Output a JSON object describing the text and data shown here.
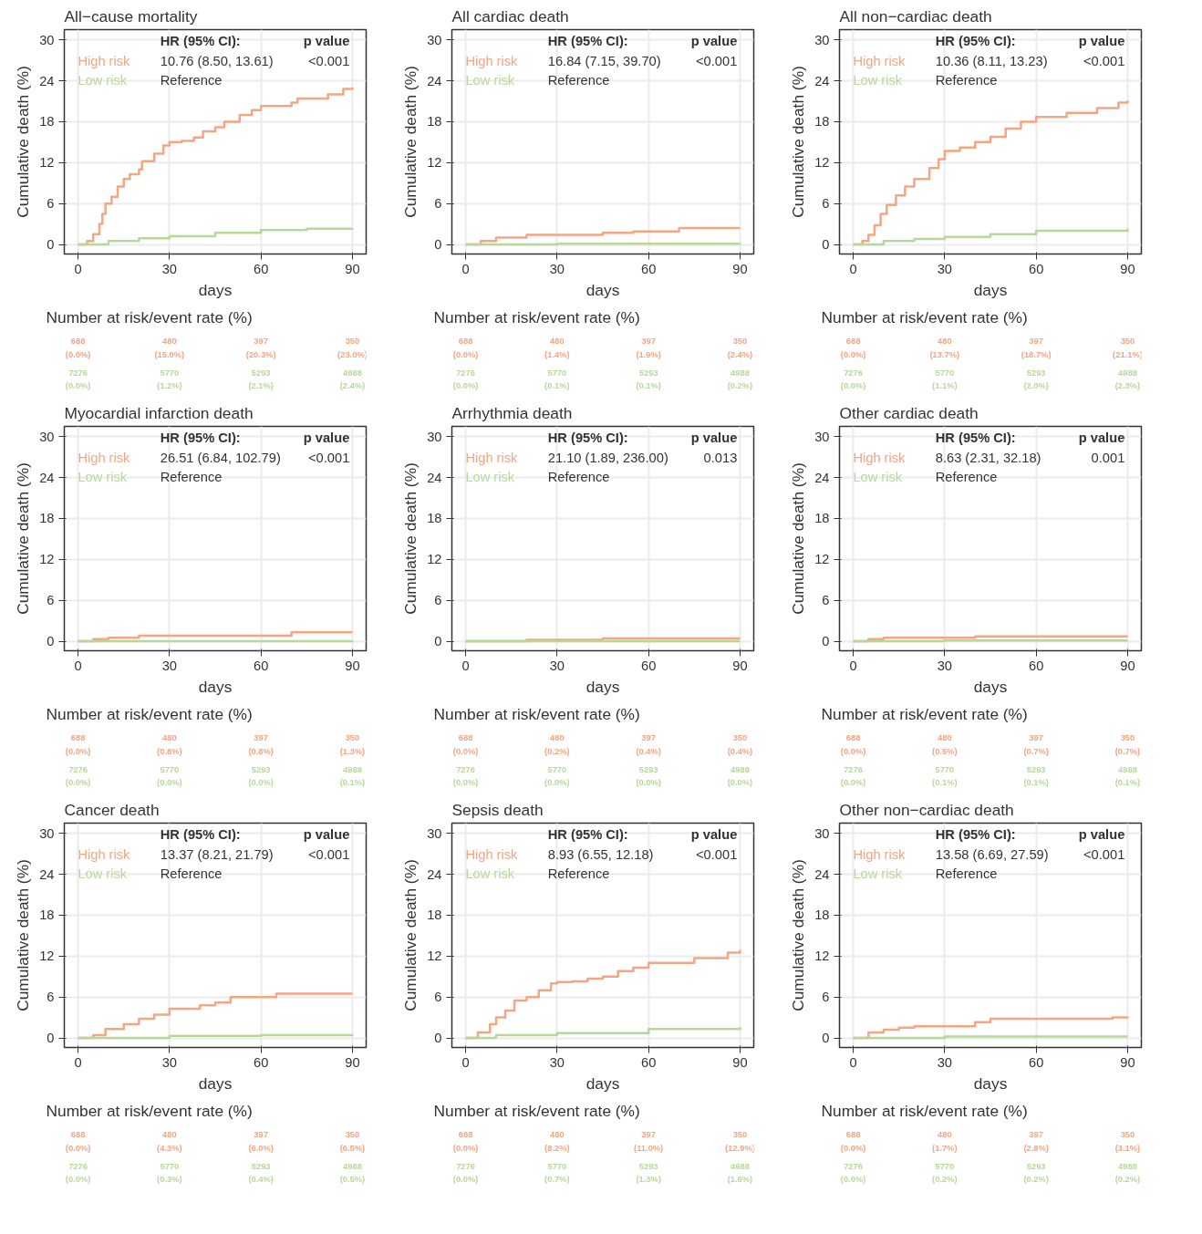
{
  "chart_data": [
    {
      "type": "step",
      "title": "All−cause mortality",
      "xlabel": "days",
      "ylabel": "Cumulative death (%)",
      "xlim": [
        -4.5,
        94.5
      ],
      "ylim": [
        -1.4,
        31.5
      ],
      "xticks": [
        0,
        30,
        60,
        90
      ],
      "yticks": [
        0,
        6,
        12,
        18,
        24,
        30
      ],
      "grid": true,
      "legend": "top left",
      "series": [
        {
          "name": "High risk",
          "color": "#f4a582",
          "x": [
            0,
            3,
            5,
            7,
            8,
            9,
            11,
            13,
            15,
            17,
            20,
            21,
            25,
            28,
            30,
            34,
            38,
            41,
            45,
            48,
            53,
            57,
            60,
            66,
            70,
            72,
            80,
            82,
            87,
            90
          ],
          "values": [
            0,
            0.5,
            1.5,
            3,
            4.5,
            6,
            7,
            8.5,
            9.6,
            10.3,
            11,
            12.2,
            13.3,
            14.5,
            15,
            15.2,
            15.7,
            16.6,
            17.2,
            18,
            19,
            19.7,
            20.3,
            20.3,
            20.8,
            21.4,
            21.4,
            22,
            22.8,
            23
          ]
        },
        {
          "name": "Low risk",
          "color": "#b8d89a",
          "x": [
            0,
            10,
            20,
            30,
            45,
            60,
            75,
            90
          ],
          "values": [
            0,
            0.5,
            0.9,
            1.2,
            1.7,
            2.1,
            2.3,
            2.4
          ]
        }
      ],
      "annotations": [
        "HR (95% CI):",
        "p value",
        "10.76 (8.50, 13.61)",
        "<0.001",
        "Reference",
        "Number at risk/event rate (%)",
        "688",
        "480",
        "397",
        "350",
        "(0.0%)",
        "(15.0%)",
        "(20.3%)",
        "(23.0%)",
        "7276",
        "5770",
        "5293",
        "4988",
        "(0.0%)",
        "(1.2%)",
        "(2.1%)",
        "(2.4%)"
      ]
    },
    {
      "type": "step",
      "title": "All cardiac death",
      "xlabel": "days",
      "ylabel": "Cumulative death (%)",
      "xlim": [
        -4.5,
        94.5
      ],
      "ylim": [
        -1.4,
        31.5
      ],
      "xticks": [
        0,
        30,
        60,
        90
      ],
      "yticks": [
        0,
        6,
        12,
        18,
        24,
        30
      ],
      "grid": true,
      "legend": "top left",
      "series": [
        {
          "name": "High risk",
          "color": "#f4a582",
          "x": [
            0,
            5,
            10,
            20,
            30,
            45,
            55,
            60,
            70,
            90
          ],
          "values": [
            0,
            0.5,
            1.0,
            1.4,
            1.4,
            1.7,
            1.9,
            1.9,
            2.4,
            2.4
          ]
        },
        {
          "name": "Low risk",
          "color": "#b8d89a",
          "x": [
            0,
            30,
            60,
            90
          ],
          "values": [
            0,
            0.1,
            0.1,
            0.2
          ]
        }
      ],
      "annotations": [
        "HR (95% CI):",
        "p value",
        "16.84 (7.15, 39.70)",
        "<0.001",
        "Reference",
        "Number at risk/event rate (%)",
        "688",
        "480",
        "397",
        "350",
        "(0.0%)",
        "(1.4%)",
        "(1.9%)",
        "(2.4%)",
        "7276",
        "5770",
        "5293",
        "4988",
        "(0.0%)",
        "(0.1%)",
        "(0.1%)",
        "(0.2%)"
      ]
    },
    {
      "type": "step",
      "title": "All non−cardiac death",
      "xlabel": "days",
      "ylabel": "Cumulative death (%)",
      "xlim": [
        -4.5,
        94.5
      ],
      "ylim": [
        -1.4,
        31.5
      ],
      "xticks": [
        0,
        30,
        60,
        90
      ],
      "yticks": [
        0,
        6,
        12,
        18,
        24,
        30
      ],
      "grid": true,
      "legend": "top left",
      "series": [
        {
          "name": "High risk",
          "color": "#f4a582",
          "x": [
            0,
            3,
            5,
            7,
            9,
            11,
            14,
            17,
            20,
            25,
            28,
            30,
            35,
            40,
            45,
            50,
            55,
            60,
            70,
            80,
            87,
            90
          ],
          "values": [
            0,
            0.5,
            1.4,
            2.8,
            4.5,
            5.8,
            7.2,
            8.5,
            9.6,
            11.2,
            12.5,
            13.7,
            14.2,
            15,
            15.8,
            17,
            18,
            18.7,
            19.3,
            20,
            20.8,
            21.1
          ]
        },
        {
          "name": "Low risk",
          "color": "#b8d89a",
          "x": [
            0,
            10,
            20,
            30,
            45,
            60,
            90
          ],
          "values": [
            0,
            0.5,
            0.8,
            1.1,
            1.5,
            2.0,
            2.3
          ]
        }
      ],
      "annotations": [
        "HR (95% CI):",
        "p value",
        "10.36 (8.11, 13.23)",
        "<0.001",
        "Reference",
        "Number at risk/event rate (%)",
        "688",
        "480",
        "397",
        "350",
        "(0.0%)",
        "(13.7%)",
        "(18.7%)",
        "(21.1%)",
        "7276",
        "5770",
        "5293",
        "4988",
        "(0.0%)",
        "(1.1%)",
        "(2.0%)",
        "(2.3%)"
      ]
    },
    {
      "type": "step",
      "title": "Myocardial infarction death",
      "xlabel": "days",
      "ylabel": "Cumulative death (%)",
      "xlim": [
        -4.5,
        94.5
      ],
      "ylim": [
        -1.4,
        31.5
      ],
      "xticks": [
        0,
        30,
        60,
        90
      ],
      "yticks": [
        0,
        6,
        12,
        18,
        24,
        30
      ],
      "grid": true,
      "legend": "top left",
      "series": [
        {
          "name": "High risk",
          "color": "#f4a582",
          "x": [
            0,
            5,
            10,
            20,
            30,
            60,
            70,
            90
          ],
          "values": [
            0,
            0.3,
            0.5,
            0.8,
            0.8,
            0.8,
            1.3,
            1.3
          ]
        },
        {
          "name": "Low risk",
          "color": "#b8d89a",
          "x": [
            0,
            60,
            90
          ],
          "values": [
            0,
            0,
            0.1
          ]
        }
      ],
      "annotations": [
        "HR (95% CI):",
        "p value",
        "26.51 (6.84, 102.79)",
        "<0.001",
        "Reference",
        "Number at risk/event rate (%)",
        "688",
        "480",
        "397",
        "350",
        "(0.0%)",
        "(0.8%)",
        "(0.8%)",
        "(1.3%)",
        "7276",
        "5770",
        "5293",
        "4988",
        "(0.0%)",
        "(0.0%)",
        "(0.0%)",
        "(0.1%)"
      ]
    },
    {
      "type": "step",
      "title": "Arrhythmia death",
      "xlabel": "days",
      "ylabel": "Cumulative death (%)",
      "xlim": [
        -4.5,
        94.5
      ],
      "ylim": [
        -1.4,
        31.5
      ],
      "xticks": [
        0,
        30,
        60,
        90
      ],
      "yticks": [
        0,
        6,
        12,
        18,
        24,
        30
      ],
      "grid": true,
      "legend": "top left",
      "series": [
        {
          "name": "High risk",
          "color": "#f4a582",
          "x": [
            0,
            20,
            30,
            45,
            90
          ],
          "values": [
            0,
            0.2,
            0.2,
            0.4,
            0.4
          ]
        },
        {
          "name": "Low risk",
          "color": "#b8d89a",
          "x": [
            0,
            90
          ],
          "values": [
            0,
            0
          ]
        }
      ],
      "annotations": [
        "HR (95% CI):",
        "p value",
        "21.10 (1.89, 236.00)",
        "0.013",
        "Reference",
        "Number at risk/event rate (%)",
        "688",
        "480",
        "397",
        "350",
        "(0.0%)",
        "(0.2%)",
        "(0.4%)",
        "(0.4%)",
        "7276",
        "5770",
        "5293",
        "4988",
        "(0.0%)",
        "(0.0%)",
        "(0.0%)",
        "(0.0%)"
      ]
    },
    {
      "type": "step",
      "title": "Other cardiac death",
      "xlabel": "days",
      "ylabel": "Cumulative death (%)",
      "xlim": [
        -4.5,
        94.5
      ],
      "ylim": [
        -1.4,
        31.5
      ],
      "xticks": [
        0,
        30,
        60,
        90
      ],
      "yticks": [
        0,
        6,
        12,
        18,
        24,
        30
      ],
      "grid": true,
      "legend": "top left",
      "series": [
        {
          "name": "High risk",
          "color": "#f4a582",
          "x": [
            0,
            5,
            10,
            30,
            40,
            90
          ],
          "values": [
            0,
            0.3,
            0.5,
            0.5,
            0.7,
            0.7
          ]
        },
        {
          "name": "Low risk",
          "color": "#b8d89a",
          "x": [
            0,
            30,
            90
          ],
          "values": [
            0,
            0.1,
            0.1
          ]
        }
      ],
      "annotations": [
        "HR (95% CI):",
        "p value",
        "8.63 (2.31, 32.18)",
        "0.001",
        "Reference",
        "Number at risk/event rate (%)",
        "688",
        "480",
        "397",
        "350",
        "(0.0%)",
        "(0.5%)",
        "(0.7%)",
        "(0.7%)",
        "7276",
        "5770",
        "5293",
        "4988",
        "(0.0%)",
        "(0.1%)",
        "(0.1%)",
        "(0.1%)"
      ]
    },
    {
      "type": "step",
      "title": "Cancer death",
      "xlabel": "days",
      "ylabel": "Cumulative death (%)",
      "xlim": [
        -4.5,
        94.5
      ],
      "ylim": [
        -1.4,
        31.5
      ],
      "xticks": [
        0,
        30,
        60,
        90
      ],
      "yticks": [
        0,
        6,
        12,
        18,
        24,
        30
      ],
      "grid": true,
      "legend": "top left",
      "series": [
        {
          "name": "High risk",
          "color": "#f4a582",
          "x": [
            0,
            5,
            9,
            15,
            20,
            25,
            30,
            40,
            45,
            50,
            60,
            65,
            90
          ],
          "values": [
            0,
            0.4,
            1.3,
            2,
            2.8,
            3.4,
            4.3,
            4.8,
            5.2,
            6,
            6,
            6.5,
            6.5
          ]
        },
        {
          "name": "Low risk",
          "color": "#b8d89a",
          "x": [
            0,
            30,
            60,
            90
          ],
          "values": [
            0,
            0.3,
            0.4,
            0.5
          ]
        }
      ],
      "annotations": [
        "HR (95% CI):",
        "p value",
        "13.37 (8.21, 21.79)",
        "<0.001",
        "Reference",
        "Number at risk/event rate (%)",
        "688",
        "480",
        "397",
        "350",
        "(0.0%)",
        "(4.3%)",
        "(6.0%)",
        "(6.5%)",
        "7276",
        "5770",
        "5293",
        "4988",
        "(0.0%)",
        "(0.3%)",
        "(0.4%)",
        "(0.5%)"
      ]
    },
    {
      "type": "step",
      "title": "Sepsis death",
      "xlabel": "days",
      "ylabel": "Cumulative death (%)",
      "xlim": [
        -4.5,
        94.5
      ],
      "ylim": [
        -1.4,
        31.5
      ],
      "xticks": [
        0,
        30,
        60,
        90
      ],
      "yticks": [
        0,
        6,
        12,
        18,
        24,
        30
      ],
      "grid": true,
      "legend": "top left",
      "series": [
        {
          "name": "High risk",
          "color": "#f4a582",
          "x": [
            0,
            4,
            8,
            10,
            13,
            16,
            20,
            24,
            28,
            30,
            35,
            40,
            45,
            50,
            55,
            60,
            70,
            75,
            80,
            86,
            90
          ],
          "values": [
            0,
            0.8,
            2,
            3,
            4,
            5.5,
            6,
            7,
            8,
            8.2,
            8.3,
            8.7,
            9,
            9.8,
            10.3,
            11,
            11,
            11.7,
            11.7,
            12.5,
            12.9
          ]
        },
        {
          "name": "Low risk",
          "color": "#b8d89a",
          "x": [
            0,
            10,
            30,
            60,
            90
          ],
          "values": [
            0,
            0.4,
            0.7,
            1.3,
            1.6
          ]
        }
      ],
      "annotations": [
        "HR (95% CI):",
        "p value",
        "8.93 (6.55, 12.18)",
        "<0.001",
        "Reference",
        "Number at risk/event rate (%)",
        "688",
        "480",
        "397",
        "350",
        "(0.0%)",
        "(8.2%)",
        "(11.0%)",
        "(12.9%)",
        "7276",
        "5770",
        "5293",
        "4988",
        "(0.0%)",
        "(0.7%)",
        "(1.3%)",
        "(1.6%)"
      ]
    },
    {
      "type": "step",
      "title": "Other non−cardiac death",
      "xlabel": "days",
      "ylabel": "Cumulative death (%)",
      "xlim": [
        -4.5,
        94.5
      ],
      "ylim": [
        -1.4,
        31.5
      ],
      "xticks": [
        0,
        30,
        60,
        90
      ],
      "yticks": [
        0,
        6,
        12,
        18,
        24,
        30
      ],
      "grid": true,
      "legend": "top left",
      "series": [
        {
          "name": "High risk",
          "color": "#f4a582",
          "x": [
            0,
            5,
            10,
            15,
            20,
            30,
            40,
            45,
            60,
            85,
            90
          ],
          "values": [
            0,
            0.8,
            1.2,
            1.5,
            1.7,
            1.7,
            2.3,
            2.8,
            2.8,
            3.0,
            3.1
          ]
        },
        {
          "name": "Low risk",
          "color": "#b8d89a",
          "x": [
            0,
            30,
            90
          ],
          "values": [
            0,
            0.2,
            0.2
          ]
        }
      ],
      "annotations": [
        "HR (95% CI):",
        "p value",
        "13.58 (6.69, 27.59)",
        "<0.001",
        "Reference",
        "Number at risk/event rate (%)",
        "688",
        "480",
        "397",
        "350",
        "(0.0%)",
        "(1.7%)",
        "(2.8%)",
        "(3.1%)",
        "7276",
        "5770",
        "5293",
        "4988",
        "(0.0%)",
        "(0.2%)",
        "(0.2%)",
        "(0.2%)"
      ]
    }
  ]
}
